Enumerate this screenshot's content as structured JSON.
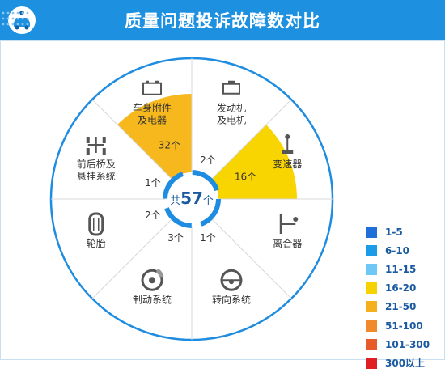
{
  "header": {
    "title": "质量问题投诉故障数对比"
  },
  "colors": {
    "header_bg": "#1e90e0",
    "ring": "#1e8ce0",
    "spoke": "#d8d8d8",
    "center_text": "#1a5aa0",
    "label_text": "#333333"
  },
  "center": {
    "prefix": "共",
    "total": "57",
    "suffix": "个"
  },
  "chart_data": {
    "type": "radial-sector",
    "title": "质量问题投诉故障数对比",
    "categories": [
      "发动机及电机",
      "变速器",
      "离合器",
      "转向系统",
      "制动系统",
      "轮胎",
      "前后桥及悬挂系统",
      "车身附件及电器"
    ],
    "values": [
      2,
      16,
      0,
      1,
      3,
      2,
      1,
      32
    ],
    "value_labels": [
      "2个",
      "16个",
      "",
      "1个",
      "3个",
      "2个",
      "1个",
      "32个"
    ],
    "category_labels": [
      [
        "发动机",
        "及电机"
      ],
      [
        "变速器"
      ],
      [
        "离合器"
      ],
      [
        "转向系统"
      ],
      [
        "制动系统"
      ],
      [
        "轮胎"
      ],
      [
        "前后桥及",
        "悬挂系统"
      ],
      [
        "车身附件",
        "及电器"
      ]
    ],
    "icons": [
      "engine-icon",
      "gear-shifter-icon",
      "clutch-icon",
      "steering-wheel-icon",
      "brake-disc-icon",
      "tire-icon",
      "axle-suspension-icon",
      "battery-icon"
    ],
    "legend": [
      {
        "label": "1-5",
        "color": "#1f6fd8"
      },
      {
        "label": "6-10",
        "color": "#1c9be8"
      },
      {
        "label": "11-15",
        "color": "#6ec8f5"
      },
      {
        "label": "16-20",
        "color": "#f5d200"
      },
      {
        "label": "21-50",
        "color": "#f5b020"
      },
      {
        "label": "51-100",
        "color": "#f08a2a"
      },
      {
        "label": "101-300",
        "color": "#e85a2a"
      },
      {
        "label": "300以上",
        "color": "#e02020"
      }
    ],
    "sector_fill_scale": [
      {
        "min": 1,
        "max": 5,
        "color": "none"
      },
      {
        "min": 16,
        "max": 20,
        "color": "#f8d400"
      },
      {
        "min": 21,
        "max": 50,
        "color": "#f7b81e"
      }
    ],
    "legend_position": "right-bottom"
  }
}
